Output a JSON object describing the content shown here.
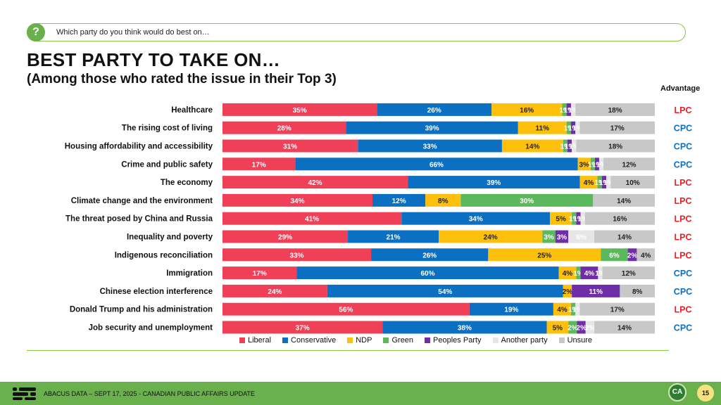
{
  "header": {
    "question": "Which party do you think would do best on…",
    "title": "BEST PARTY TO TAKE ON…",
    "subtitle": "(Among those who rated the issue in their Top 3)",
    "advantage_label": "Advantage"
  },
  "footer": {
    "text": "ABACUS DATA – SEPT 17, 2025 - CANADIAN PUBLIC AFFAIRS UPDATE",
    "logo_text": "CA",
    "page_number": "15"
  },
  "colors": {
    "Liberal": "#ef4058",
    "Conservative": "#0b6fc2",
    "NDP": "#fcc00d",
    "Green": "#5cb85c",
    "Peoples Party": "#6f2da8",
    "Another party": "#e6e6e6",
    "Unsure": "#c8c8c8",
    "LPC": "#e8202a",
    "CPC": "#0b6fc2"
  },
  "chart_data": {
    "type": "bar",
    "stacked": true,
    "orientation": "horizontal",
    "categories": [
      "Healthcare",
      "The rising cost of living",
      "Housing affordability and accessibility",
      "Crime and public safety",
      "The economy",
      "Climate change and the environment",
      "The threat posed by China and Russia",
      "Inequality and poverty",
      "Indigenous reconciliation",
      "Immigration",
      "Chinese election interference",
      "Donald Trump and his administration",
      "Job security and unemployment"
    ],
    "series": [
      {
        "name": "Liberal",
        "values": [
          35,
          28,
          31,
          17,
          42,
          34,
          41,
          29,
          33,
          17,
          24,
          56,
          37
        ]
      },
      {
        "name": "Conservative",
        "values": [
          26,
          39,
          33,
          66,
          39,
          12,
          34,
          21,
          26,
          60,
          54,
          19,
          38
        ]
      },
      {
        "name": "NDP",
        "values": [
          16,
          11,
          14,
          3,
          4,
          8,
          5,
          24,
          25,
          4,
          2,
          4,
          5
        ]
      },
      {
        "name": "Green",
        "values": [
          1,
          1,
          1,
          1,
          1,
          30,
          1,
          3,
          6,
          1,
          0,
          1,
          2
        ]
      },
      {
        "name": "Peoples Party",
        "values": [
          1,
          1,
          1,
          1,
          1,
          0,
          1,
          3,
          2,
          4,
          11,
          0,
          2
        ]
      },
      {
        "name": "Another party",
        "values": [
          1,
          1,
          1,
          1,
          1,
          0,
          1,
          6,
          0,
          1,
          0,
          1,
          2
        ]
      },
      {
        "name": "Unsure",
        "values": [
          18,
          17,
          18,
          12,
          10,
          14,
          16,
          14,
          4,
          12,
          8,
          17,
          14
        ]
      }
    ],
    "advantage": [
      "LPC",
      "CPC",
      "CPC",
      "CPC",
      "LPC",
      "LPC",
      "LPC",
      "LPC",
      "LPC",
      "CPC",
      "CPC",
      "LPC",
      "CPC"
    ],
    "legend_position": "bottom"
  }
}
